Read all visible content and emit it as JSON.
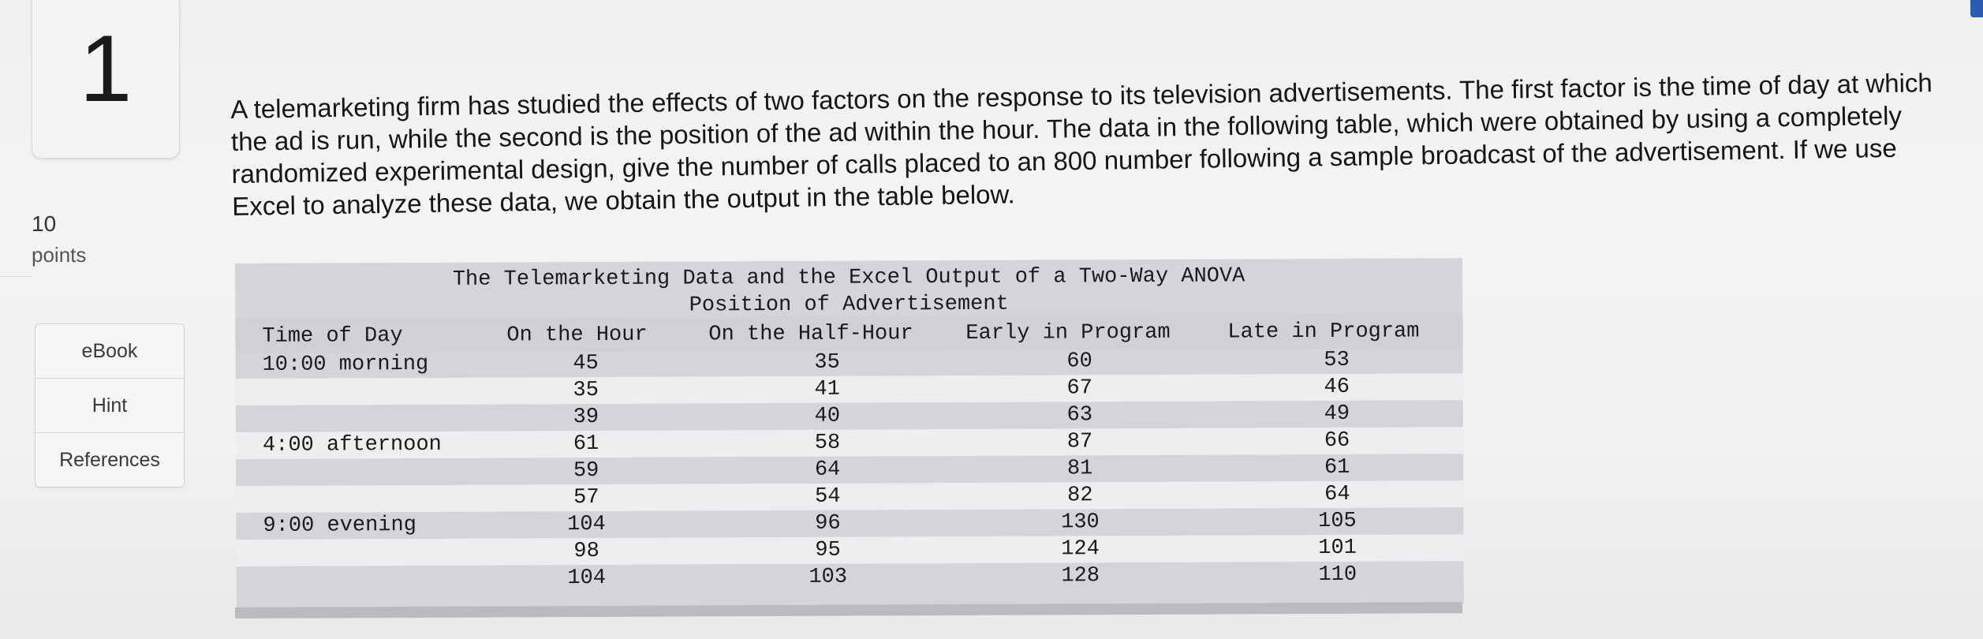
{
  "question": {
    "number": "1",
    "points_value": "10",
    "points_label": "points",
    "text": "A telemarketing firm has studied the effects of two factors on the response to its television advertisements. The first factor is the time of day at which the ad is run, while the second is the position of the ad within the hour. The data in the following table, which were obtained by using a completely randomized experimental design, give the number of calls placed to an 800 number following a sample broadcast of the advertisement. If we use Excel to analyze these data, we obtain the output in the table below."
  },
  "resources": [
    {
      "label": "eBook"
    },
    {
      "label": "Hint"
    },
    {
      "label": "References"
    }
  ],
  "table": {
    "title": "The Telemarketing Data and the Excel Output of a Two-Way ANOVA",
    "subtitle": "Position of Advertisement",
    "headers": [
      "Time of Day",
      "On the Hour",
      "On the Half-Hour",
      "Early in Program",
      "Late in Program"
    ],
    "rows": [
      {
        "time": "10:00 morning",
        "values": [
          "45",
          "35",
          "60",
          "53"
        ]
      },
      {
        "time": "",
        "values": [
          "35",
          "41",
          "67",
          "46"
        ]
      },
      {
        "time": "",
        "values": [
          "39",
          "40",
          "63",
          "49"
        ]
      },
      {
        "time": "4:00 afternoon",
        "values": [
          "61",
          "58",
          "87",
          "66"
        ]
      },
      {
        "time": "",
        "values": [
          "59",
          "64",
          "81",
          "61"
        ]
      },
      {
        "time": "",
        "values": [
          "57",
          "54",
          "82",
          "64"
        ]
      },
      {
        "time": "9:00 evening",
        "values": [
          "104",
          "96",
          "130",
          "105"
        ]
      },
      {
        "time": "",
        "values": [
          "98",
          "95",
          "124",
          "101"
        ]
      },
      {
        "time": "",
        "values": [
          "104",
          "103",
          "128",
          "110"
        ]
      }
    ]
  },
  "colors": {
    "accent": "#2a5db0",
    "table_bg": "#d4d5d9",
    "row_band": "#eeeef0"
  }
}
